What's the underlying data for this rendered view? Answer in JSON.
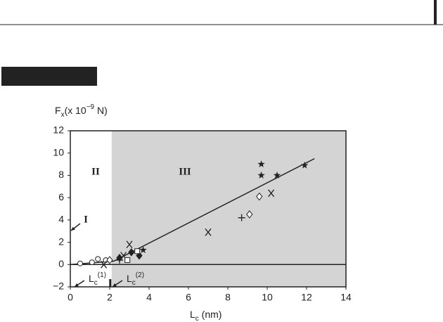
{
  "chart_data": {
    "type": "scatter",
    "y_label": {
      "main": "F",
      "sub": "x",
      "rest": "(x 10",
      "sup": "−9",
      "end": " N)"
    },
    "x_label": {
      "main": "L",
      "sub": "c",
      "rest": " (nm)"
    },
    "xlim": [
      0,
      14
    ],
    "ylim": [
      -2,
      12
    ],
    "xticks": [
      0,
      2,
      4,
      6,
      8,
      10,
      12,
      14
    ],
    "yticks": [
      {
        "value": -2,
        "label": "−2"
      },
      0,
      2,
      4,
      6,
      8,
      10,
      12
    ],
    "region_boundary": 2.1,
    "region_labels": [
      "I",
      "II",
      "III"
    ],
    "critical_lengths": [
      {
        "main": "L",
        "sub": "c",
        "sup": "(1)"
      },
      {
        "main": "L",
        "sub": "c",
        "sup": "(2)"
      }
    ],
    "fit_line": {
      "x": [
        0,
        2.2,
        12.4
      ],
      "y": [
        0,
        0.3,
        9.5
      ]
    },
    "series": [
      {
        "marker": "circle",
        "color": "#222",
        "x": [
          0.5,
          1.1,
          1.4,
          1.8
        ],
        "values": [
          0.1,
          0.2,
          0.5,
          0.4
        ]
      },
      {
        "marker": "cross",
        "color": "#222",
        "x": [
          1.7,
          2.7,
          3.0,
          7.0,
          10.2
        ],
        "values": [
          0.0,
          0.8,
          1.8,
          2.9,
          6.4
        ]
      },
      {
        "marker": "diamond",
        "color": "#222",
        "x": [
          2.0,
          9.1,
          9.6
        ],
        "values": [
          0.4,
          4.5,
          6.1
        ]
      },
      {
        "marker": "plus",
        "color": "#222",
        "x": [
          2.5,
          8.7
        ],
        "values": [
          0.4,
          4.2
        ]
      },
      {
        "marker": "star",
        "color": "#222",
        "x": [
          3.7,
          9.7,
          9.7,
          10.5,
          11.9
        ],
        "values": [
          1.3,
          9.0,
          8.0,
          8.0,
          8.9
        ]
      },
      {
        "marker": "filled-diamond",
        "color": "#222",
        "x": [
          2.5,
          3.1,
          3.5
        ],
        "values": [
          0.6,
          1.1,
          0.8
        ]
      },
      {
        "marker": "square",
        "color": "#222",
        "x": [
          2.9,
          3.4
        ],
        "values": [
          0.4,
          1.2
        ]
      }
    ]
  }
}
